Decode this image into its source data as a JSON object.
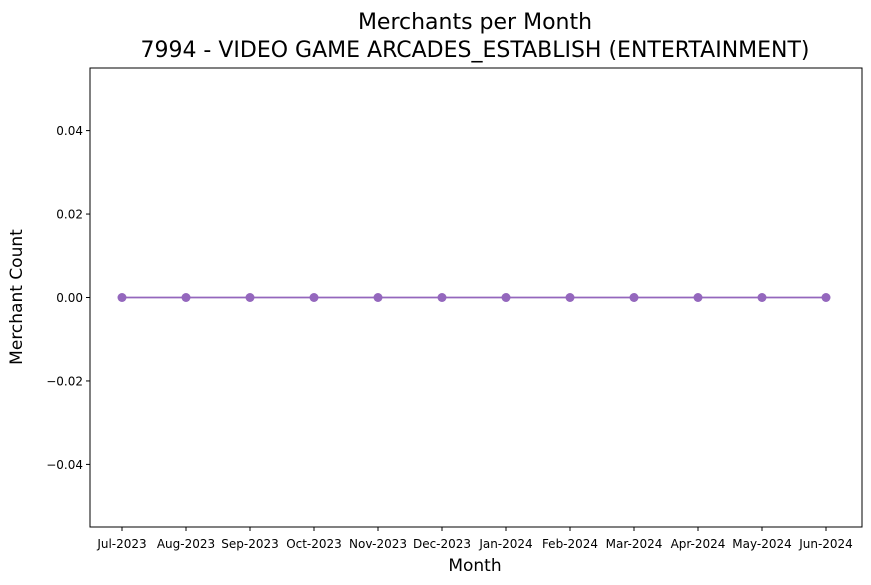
{
  "chart_data": {
    "type": "line",
    "title": "Merchants per Month",
    "subtitle": "7994 - VIDEO GAME ARCADES_ESTABLISH (ENTERTAINMENT)",
    "xlabel": "Month",
    "ylabel": "Merchant Count",
    "categories": [
      "Jul-2023",
      "Aug-2023",
      "Sep-2023",
      "Oct-2023",
      "Nov-2023",
      "Dec-2023",
      "Jan-2024",
      "Feb-2024",
      "Mar-2024",
      "Apr-2024",
      "May-2024",
      "Jun-2024"
    ],
    "series": [
      {
        "values": [
          0,
          0,
          0,
          0,
          0,
          0,
          0,
          0,
          0,
          0,
          0,
          0
        ]
      }
    ],
    "ylim": [
      -0.055,
      0.055
    ],
    "yticks": [
      -0.04,
      -0.02,
      0.0,
      0.02,
      0.04
    ],
    "ytick_labels": [
      "−0.04",
      "−0.02",
      "0.00",
      "0.02",
      "0.04"
    ],
    "grid": false,
    "colors": {
      "line": "#9467bd",
      "marker": "#9467bd",
      "axis": "#000000"
    }
  }
}
